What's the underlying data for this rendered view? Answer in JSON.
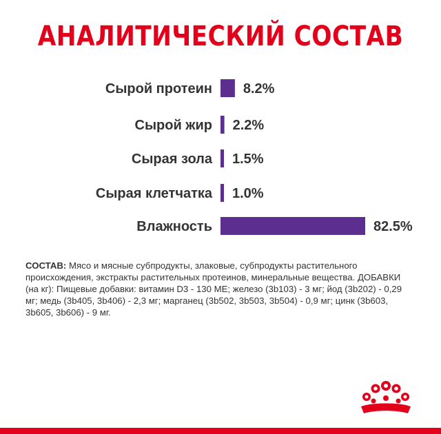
{
  "title": "АНАЛИТИЧЕСКИЙ СОСТАВ",
  "chart_data": {
    "type": "bar",
    "orientation": "horizontal",
    "categories": [
      "Сырой протеин",
      "Сырой жир",
      "Сырая зола",
      "Сырая клетчатка",
      "Влажность"
    ],
    "values": [
      8.2,
      2.2,
      1.5,
      1.0,
      82.5
    ],
    "value_labels": [
      "8.2%",
      "2.2%",
      "1.5%",
      "1.0%",
      "82.5%"
    ],
    "unit": "%",
    "xlim": [
      0,
      82.5
    ],
    "grid": false,
    "legend": "none",
    "bar_color": "#5b2e8f"
  },
  "composition": {
    "label": "СОСТАВ:",
    "text": " Мясо и мясные субпродукты, злаковые, субпродукты растительного происхождения, экстракты растительных протеинов, минеральные вещества. ДОБАВКИ (на кг): Пищевые добавки: витамин D3 - 130 МЕ; железо (3b103) - 3 мг; йод (3b202) - 0,29 мг; медь (3b405, 3b406) - 2,3 мг; марганец (3b502, 3b503, 3b504) - 0,9 мг; цинк (3b603, 3b605, 3b606) - 9 мг."
  },
  "colors": {
    "accent_red": "#e2001a",
    "text": "#333333",
    "bar": "#5b2e8f"
  },
  "logo": {
    "icon": "royal-crown-icon"
  }
}
